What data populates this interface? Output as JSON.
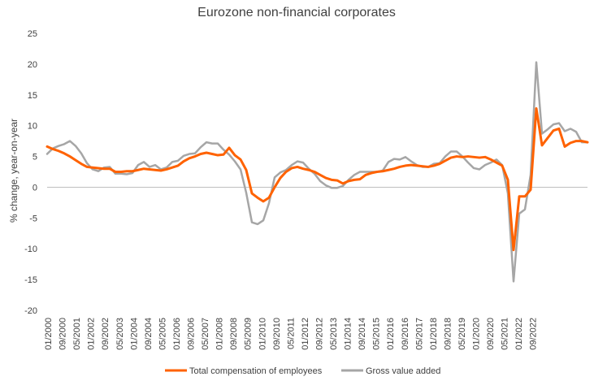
{
  "chart_data": {
    "type": "line",
    "title": "Eurozone non-financial corporates",
    "ylabel": "% change, year-on-year",
    "xlabel": "",
    "ylim": [
      -20,
      25
    ],
    "yticks": [
      25,
      20,
      15,
      10,
      5,
      0,
      -5,
      -10,
      -15,
      -20
    ],
    "xticklabels": [
      "01/2000",
      "09/2000",
      "05/2001",
      "01/2002",
      "09/2002",
      "05/2003",
      "01/2004",
      "09/2004",
      "05/2005",
      "01/2006",
      "09/2006",
      "05/2007",
      "01/2008",
      "09/2008",
      "05/2009",
      "01/2010",
      "09/2010",
      "05/2011",
      "01/2012",
      "09/2012",
      "05/2013",
      "01/2014",
      "09/2014",
      "05/2015",
      "01/2016",
      "09/2016",
      "05/2017",
      "01/2018",
      "09/2018",
      "05/2019",
      "01/2020",
      "09/2020",
      "05/2021",
      "01/2022",
      "09/2022"
    ],
    "legend_position": "bottom",
    "grid": false,
    "series": [
      {
        "name": "Total compensation of employees",
        "color": "#FF6200",
        "values": [
          6.6,
          6.2,
          5.9,
          5.5,
          5.0,
          4.4,
          3.8,
          3.3,
          3.2,
          3.1,
          3.0,
          3.0,
          2.5,
          2.5,
          2.6,
          2.6,
          2.8,
          3.0,
          2.9,
          2.8,
          2.7,
          2.9,
          3.2,
          3.5,
          4.2,
          4.7,
          5.0,
          5.4,
          5.6,
          5.4,
          5.2,
          5.3,
          6.4,
          5.2,
          4.5,
          2.8,
          -1.0,
          -1.7,
          -2.3,
          -1.7,
          0.0,
          1.5,
          2.5,
          3.1,
          3.3,
          3.0,
          2.8,
          2.5,
          2.0,
          1.5,
          1.2,
          1.1,
          0.6,
          1.0,
          1.2,
          1.3,
          2.0,
          2.3,
          2.5,
          2.6,
          2.8,
          3.0,
          3.3,
          3.5,
          3.6,
          3.5,
          3.4,
          3.3,
          3.5,
          3.8,
          4.3,
          4.8,
          5.0,
          4.9,
          5.0,
          4.9,
          4.8,
          4.9,
          4.5,
          4.0,
          3.5,
          1.2,
          -10.2,
          -1.5,
          -1.5,
          -0.4,
          12.8,
          6.8,
          8.0,
          9.2,
          9.5,
          6.6,
          7.2,
          7.5,
          7.5,
          7.3
        ]
      },
      {
        "name": "Gross value added",
        "color": "#A6A6A6",
        "values": [
          5.4,
          6.3,
          6.7,
          7.0,
          7.5,
          6.7,
          5.5,
          3.9,
          2.9,
          2.6,
          3.2,
          3.3,
          2.2,
          2.2,
          2.1,
          2.3,
          3.6,
          4.1,
          3.3,
          3.6,
          2.9,
          3.2,
          4.1,
          4.3,
          5.1,
          5.4,
          5.5,
          6.5,
          7.3,
          7.1,
          7.1,
          6.1,
          5.3,
          4.2,
          2.9,
          -0.9,
          -5.7,
          -6.0,
          -5.4,
          -2.6,
          1.6,
          2.4,
          2.8,
          3.6,
          4.2,
          4.0,
          3.0,
          2.2,
          1.0,
          0.3,
          -0.1,
          -0.1,
          0.2,
          1.2,
          2.0,
          2.5,
          2.5,
          2.5,
          2.5,
          2.7,
          4.1,
          4.6,
          4.5,
          4.9,
          4.2,
          3.6,
          3.3,
          3.3,
          3.8,
          3.9,
          5.0,
          5.8,
          5.8,
          5.0,
          4.0,
          3.1,
          2.9,
          3.6,
          4.0,
          4.5,
          3.6,
          -1.0,
          -15.3,
          -4.3,
          -3.6,
          2.0,
          20.3,
          8.7,
          9.4,
          10.2,
          10.4,
          9.1,
          9.5,
          9.0,
          7.3,
          7.3
        ]
      }
    ]
  }
}
